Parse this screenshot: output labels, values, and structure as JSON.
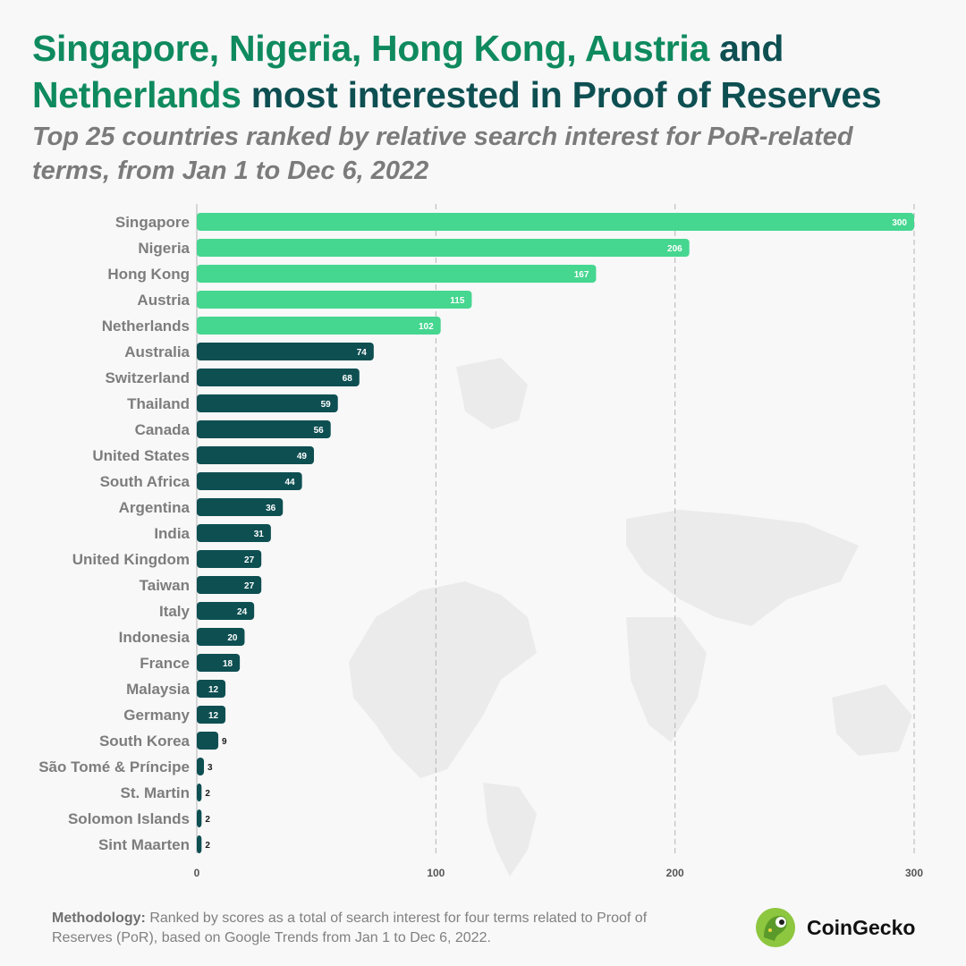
{
  "title": {
    "highlight": "Singapore, Nigeria, Hong Kong, Austria",
    "connector": "and",
    "highlight2": "Netherlands",
    "rest": "most interested in Proof of Reserves"
  },
  "subtitle": "Top 25 countries ranked by relative search interest for PoR-related terms, from Jan 1 to Dec 6, 2022",
  "colors": {
    "top": "#45d690",
    "other": "#0e4f52",
    "title_dark": "#0e4f52",
    "title_green": "#0f8a5f"
  },
  "chart_data": {
    "type": "bar",
    "orientation": "horizontal",
    "categories": [
      "Singapore",
      "Nigeria",
      "Hong Kong",
      "Austria",
      "Netherlands",
      "Australia",
      "Switzerland",
      "Thailand",
      "Canada",
      "United States",
      "South Africa",
      "Argentina",
      "India",
      "United Kingdom",
      "Taiwan",
      "Italy",
      "Indonesia",
      "France",
      "Malaysia",
      "Germany",
      "South Korea",
      "São Tomé & Príncipe",
      "St. Martin",
      "Solomon Islands",
      "Sint Maarten"
    ],
    "values": [
      300,
      206,
      167,
      115,
      102,
      74,
      68,
      59,
      56,
      49,
      44,
      36,
      31,
      27,
      27,
      24,
      20,
      18,
      12,
      12,
      9,
      3,
      2,
      2,
      2
    ],
    "highlight_top": 5,
    "xlim": [
      0,
      300
    ],
    "xticks": [
      0,
      100,
      200,
      300
    ],
    "grid": "vertical dashed"
  },
  "footer": {
    "label": "Methodology:",
    "text": "Ranked by scores as a total of search interest for four terms related to Proof of Reserves (PoR), based on Google Trends from Jan 1 to Dec 6, 2022."
  },
  "brand": {
    "name": "CoinGecko",
    "logo_icon": "gecko-logo-icon"
  }
}
